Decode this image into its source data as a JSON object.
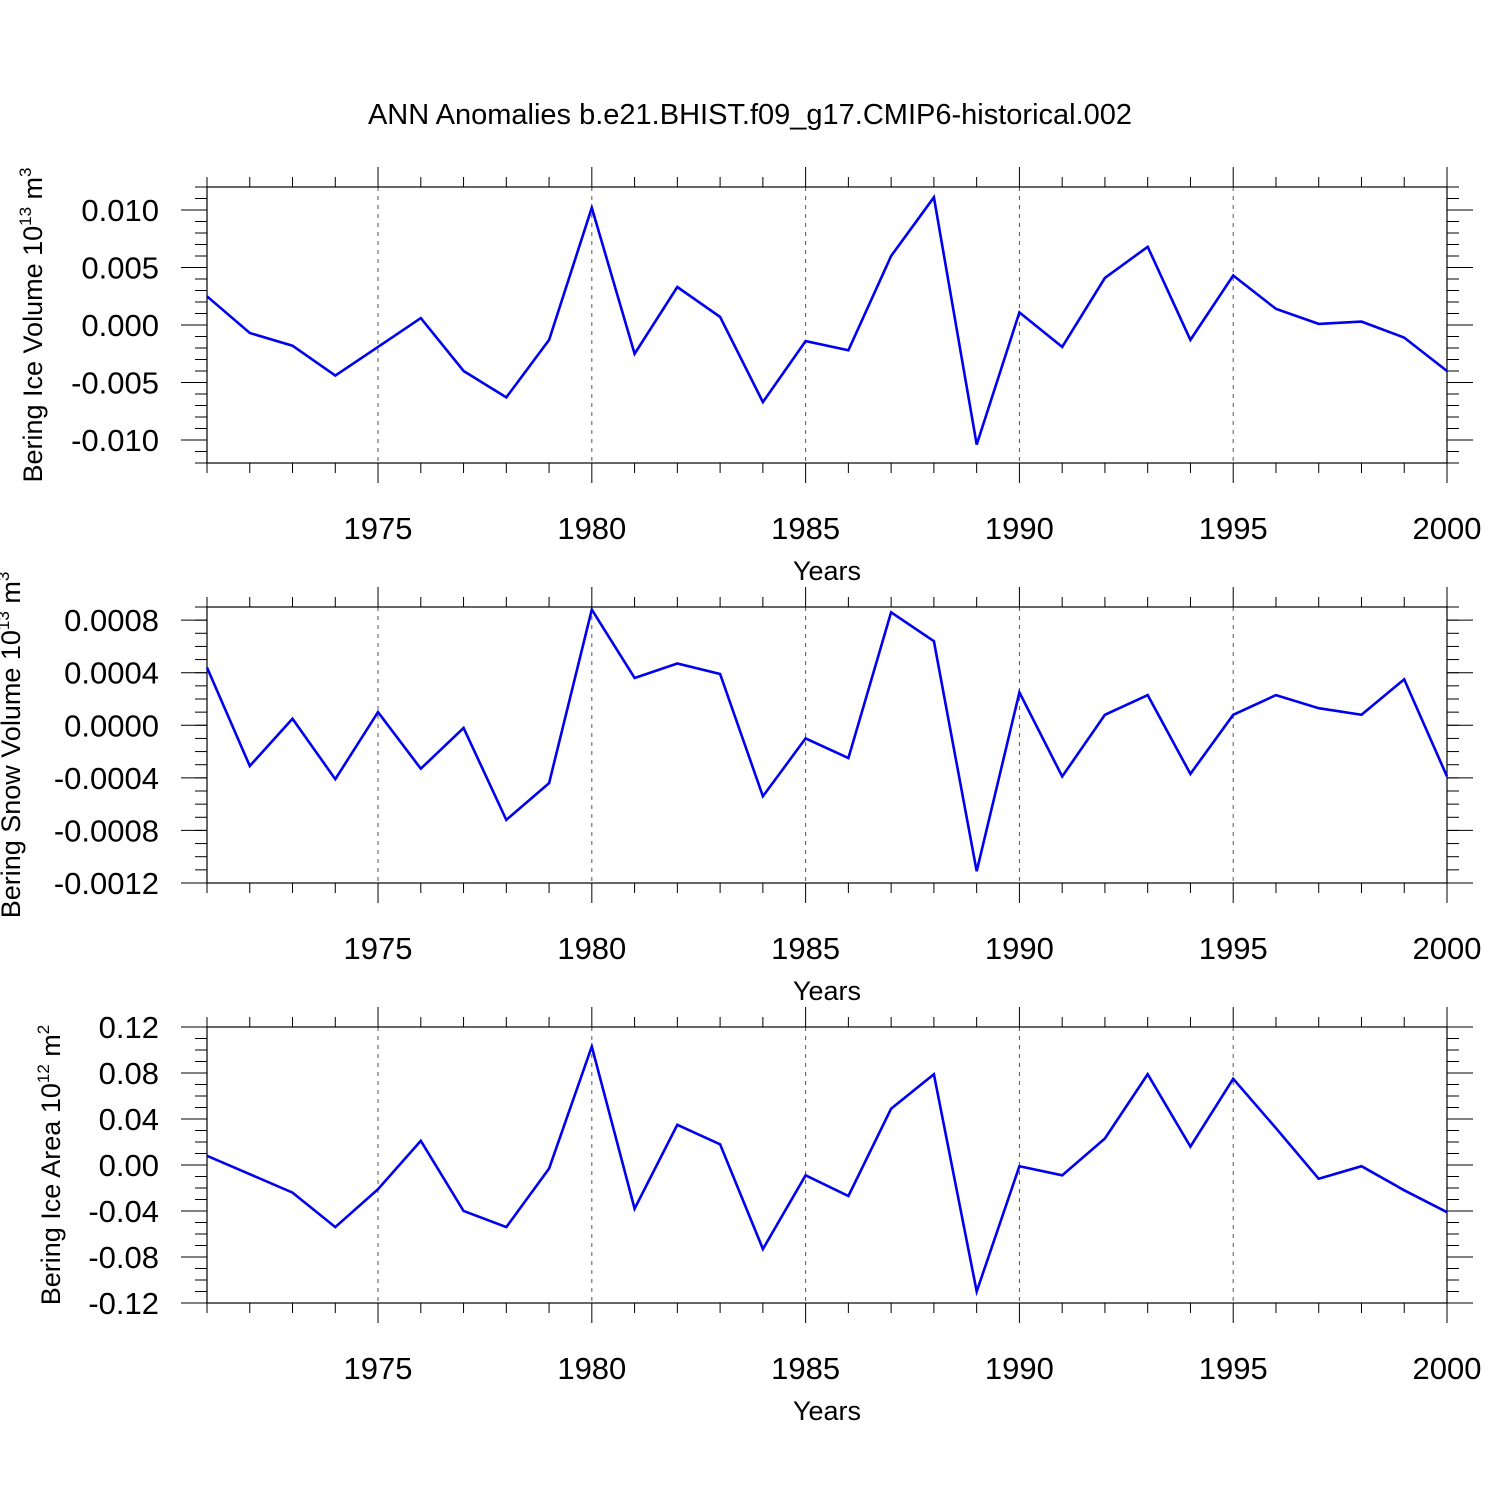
{
  "title": "ANN Anomalies b.e21.BHIST.f09_g17.CMIP6-historical.002",
  "series_color": "#0000ee",
  "chart_data": [
    {
      "type": "line",
      "ylabel": "Bering Ice Volume 10",
      "ylabel_exp": "13",
      "ylabel_unit": "m",
      "ylabel_unit_exp": "3",
      "xlabel": "Years",
      "xlim": [
        1971,
        2000
      ],
      "ylim": [
        -0.012,
        0.012
      ],
      "yticks": [
        -0.01,
        -0.005,
        0.0,
        0.005,
        0.01
      ],
      "ytick_labels": [
        "-0.010",
        "-0.005",
        "0.000",
        "0.005",
        "0.010"
      ],
      "y_minor_step": 0.001,
      "xticks": [
        1975,
        1980,
        1985,
        1990,
        1995,
        2000
      ],
      "xtick_labels": [
        "1975",
        "1980",
        "1985",
        "1990",
        "1995",
        "2000"
      ],
      "grid": "vertical dashed at major x ticks",
      "x": [
        1971,
        1972,
        1973,
        1974,
        1975,
        1976,
        1977,
        1978,
        1979,
        1980,
        1981,
        1982,
        1983,
        1984,
        1985,
        1986,
        1987,
        1988,
        1989,
        1990,
        1991,
        1992,
        1993,
        1994,
        1995,
        1996,
        1997,
        1998,
        1999,
        2000
      ],
      "values": [
        0.0025,
        -0.0007,
        -0.0018,
        -0.0044,
        -0.0019,
        0.0006,
        -0.004,
        -0.0063,
        -0.0013,
        0.0102,
        -0.0025,
        0.0033,
        0.0007,
        -0.0067,
        -0.0014,
        -0.0022,
        0.006,
        0.0111,
        -0.0104,
        0.0011,
        -0.0019,
        0.0041,
        0.0068,
        -0.0013,
        0.0043,
        0.0014,
        0.0001,
        0.0003,
        -0.0011,
        -0.004
      ]
    },
    {
      "type": "line",
      "ylabel": "Bering Snow Volume 10",
      "ylabel_exp": "13",
      "ylabel_unit": "m",
      "ylabel_unit_exp": "3",
      "xlabel": "Years",
      "xlim": [
        1971,
        2000
      ],
      "ylim": [
        -0.0012,
        0.0009
      ],
      "yticks": [
        -0.0012,
        -0.0008,
        -0.0004,
        0.0,
        0.0004,
        0.0008
      ],
      "ytick_labels": [
        "-0.0012",
        "-0.0008",
        "-0.0004",
        "0.0000",
        "0.0004",
        "0.0008"
      ],
      "y_minor_step": 0.0001,
      "xticks": [
        1975,
        1980,
        1985,
        1990,
        1995,
        2000
      ],
      "xtick_labels": [
        "1975",
        "1980",
        "1985",
        "1990",
        "1995",
        "2000"
      ],
      "grid": "vertical dashed at major x ticks",
      "x": [
        1971,
        1972,
        1973,
        1974,
        1975,
        1976,
        1977,
        1978,
        1979,
        1980,
        1981,
        1982,
        1983,
        1984,
        1985,
        1986,
        1987,
        1988,
        1989,
        1990,
        1991,
        1992,
        1993,
        1994,
        1995,
        1996,
        1997,
        1998,
        1999,
        2000
      ],
      "values": [
        0.00044,
        -0.00031,
        5e-05,
        -0.00041,
        0.0001,
        -0.00033,
        -2e-05,
        -0.00072,
        -0.00044,
        0.00088,
        0.00036,
        0.00047,
        0.00039,
        -0.00054,
        -0.0001,
        -0.00025,
        0.00086,
        0.00064,
        -0.00111,
        0.00025,
        -0.00039,
        8e-05,
        0.00023,
        -0.00037,
        8e-05,
        0.00023,
        0.00013,
        8e-05,
        0.00035,
        -0.00039
      ]
    },
    {
      "type": "line",
      "ylabel": "Bering Ice Area 10",
      "ylabel_exp": "12",
      "ylabel_unit": "m",
      "ylabel_unit_exp": "2",
      "xlabel": "Years",
      "xlim": [
        1971,
        2000
      ],
      "ylim": [
        -0.12,
        0.12
      ],
      "yticks": [
        -0.12,
        -0.08,
        -0.04,
        0.0,
        0.04,
        0.08,
        0.12
      ],
      "ytick_labels": [
        "-0.12",
        "-0.08",
        "-0.04",
        "0.00",
        "0.04",
        "0.08",
        "0.12"
      ],
      "y_minor_step": 0.01,
      "xticks": [
        1975,
        1980,
        1985,
        1990,
        1995,
        2000
      ],
      "xtick_labels": [
        "1975",
        "1980",
        "1985",
        "1990",
        "1995",
        "2000"
      ],
      "grid": "vertical dashed at major x ticks",
      "x": [
        1971,
        1972,
        1973,
        1974,
        1975,
        1976,
        1977,
        1978,
        1979,
        1980,
        1981,
        1982,
        1983,
        1984,
        1985,
        1986,
        1987,
        1988,
        1989,
        1990,
        1991,
        1992,
        1993,
        1994,
        1995,
        1996,
        1997,
        1998,
        1999,
        2000
      ],
      "values": [
        0.008,
        -0.008,
        -0.024,
        -0.054,
        -0.021,
        0.021,
        -0.04,
        -0.054,
        -0.003,
        0.103,
        -0.038,
        0.035,
        0.018,
        -0.073,
        -0.009,
        -0.027,
        0.049,
        0.079,
        -0.11,
        -0.001,
        -0.009,
        0.023,
        0.079,
        0.016,
        0.075,
        0.032,
        -0.012,
        -0.001,
        -0.022,
        -0.041
      ]
    }
  ]
}
